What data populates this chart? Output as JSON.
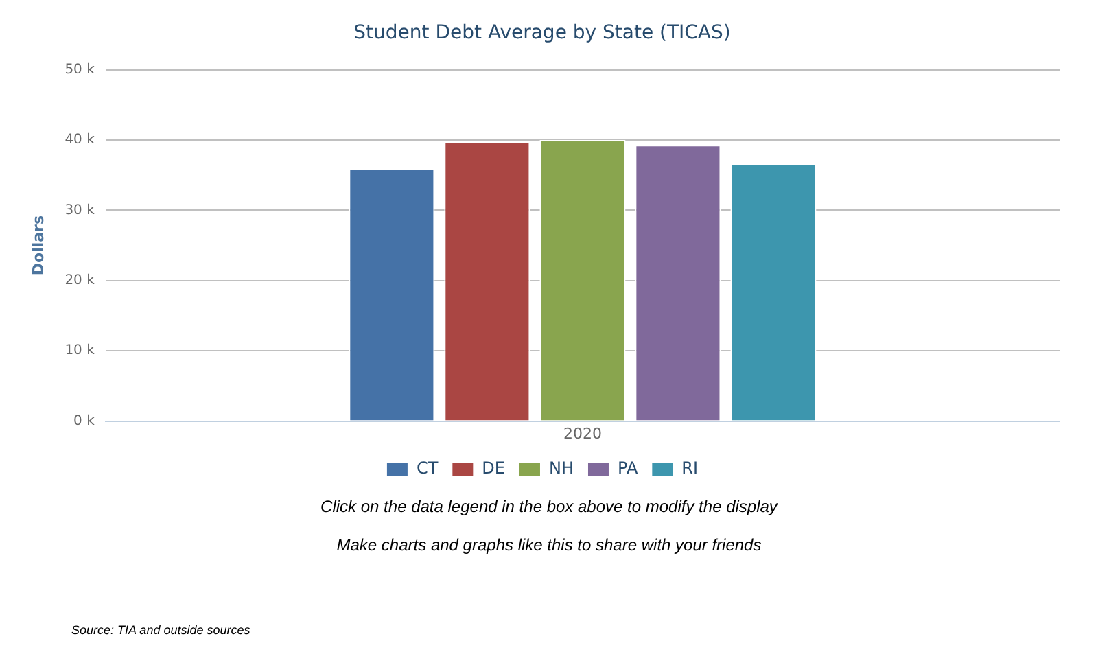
{
  "chart_data": {
    "type": "bar",
    "title": "Student Debt Average by State (TICAS)",
    "ylabel": "Dollars",
    "categories": [
      "2020"
    ],
    "series": [
      {
        "name": "CT",
        "color": "#4572a7",
        "values": [
          36000
        ]
      },
      {
        "name": "DE",
        "color": "#aa4643",
        "values": [
          39700
        ]
      },
      {
        "name": "NH",
        "color": "#89a54e",
        "values": [
          40000
        ]
      },
      {
        "name": "PA",
        "color": "#80699b",
        "values": [
          39300
        ]
      },
      {
        "name": "RI",
        "color": "#3d96ae",
        "values": [
          36600
        ]
      }
    ],
    "ylim": [
      0,
      50000
    ],
    "yticks": [
      {
        "value": 0,
        "label": "0 k"
      },
      {
        "value": 10000,
        "label": "10 k"
      },
      {
        "value": 20000,
        "label": "20 k"
      },
      {
        "value": 30000,
        "label": "30 k"
      },
      {
        "value": 40000,
        "label": "40 k"
      },
      {
        "value": 50000,
        "label": "50 k"
      }
    ],
    "grid": "y",
    "legend": "bottom",
    "annotations": [
      "Click on the data legend in the box above to modify the display",
      "Make charts and graphs like this to share with your friends",
      "Source: TIA and outside sources"
    ]
  }
}
